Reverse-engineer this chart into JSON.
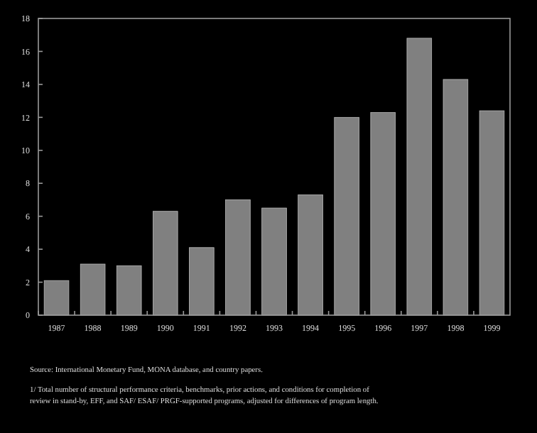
{
  "chart_data": {
    "type": "bar",
    "categories": [
      "1987",
      "1988",
      "1989",
      "1990",
      "1991",
      "1992",
      "1993",
      "1994",
      "1995",
      "1996",
      "1997",
      "1998",
      "1999"
    ],
    "values": [
      2.1,
      3.1,
      3.0,
      6.3,
      4.1,
      7.0,
      6.5,
      7.3,
      12.0,
      12.3,
      16.8,
      14.3,
      12.4
    ],
    "color": "#808080",
    "ylim": [
      0,
      18
    ],
    "yticks": [
      0,
      2,
      4,
      6,
      8,
      10,
      12,
      14,
      16,
      18
    ],
    "annotations": [
      "Source: International Monetary Fund, MONA database, and country papers.",
      "1/ Total number of structural performance criteria, benchmarks, prior actions, and conditions for completion of review in stand-by, EFF, and SAF/ ESAF/ PRGF-supported programs, adjusted for differences of program length."
    ]
  }
}
